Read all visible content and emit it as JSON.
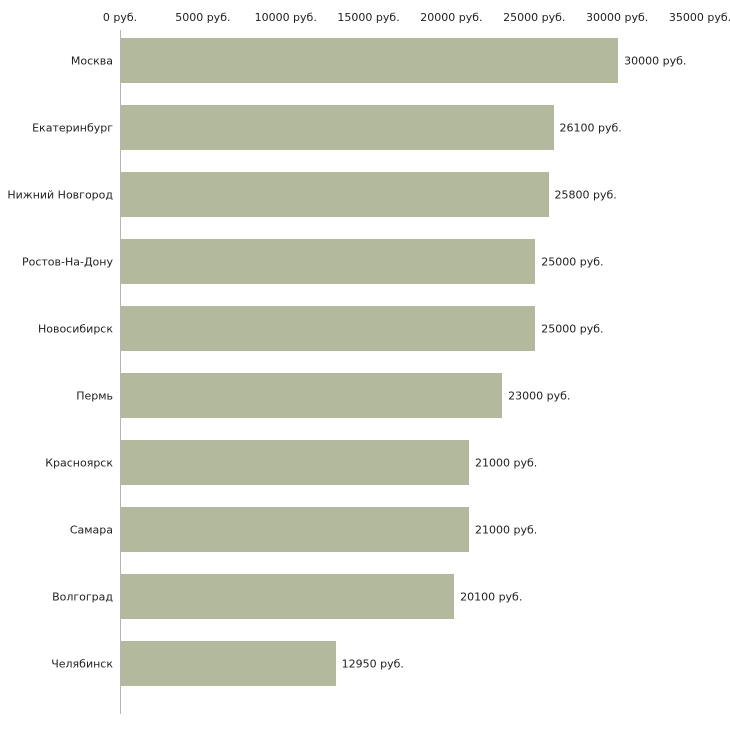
{
  "chart_data": {
    "type": "bar",
    "orientation": "horizontal",
    "title": "",
    "xlabel": "",
    "ylabel": "",
    "categories": [
      "Москва",
      "Екатеринбург",
      "Нижний Новгород",
      "Ростов-На-Дону",
      "Новосибирск",
      "Пермь",
      "Красноярск",
      "Самара",
      "Волгоград",
      "Челябинск"
    ],
    "values": [
      30000,
      26100,
      25800,
      25000,
      25000,
      23000,
      21000,
      21000,
      20100,
      12950
    ],
    "value_labels": [
      "30000 руб.",
      "26100 руб.",
      "25800 руб.",
      "25000 руб.",
      "25000 руб.",
      "23000 руб.",
      "21000 руб.",
      "21000 руб.",
      "20100 руб.",
      "12950 руб."
    ],
    "xlim": [
      0,
      35000
    ],
    "tick_values": [
      0,
      5000,
      10000,
      15000,
      20000,
      25000,
      30000,
      35000
    ],
    "tick_labels": [
      "0 руб.",
      "5000 руб.",
      "10000 руб.",
      "15000 руб.",
      "20000 руб.",
      "25000 руб.",
      "30000 руб.",
      "35000 руб."
    ],
    "grid": "off",
    "legend": "none",
    "axis_position": "top",
    "bar_color": "#b3b99c",
    "axis_line_color": "#b5b5b5",
    "text_color": "#222222",
    "background_color": "#ffffff"
  }
}
